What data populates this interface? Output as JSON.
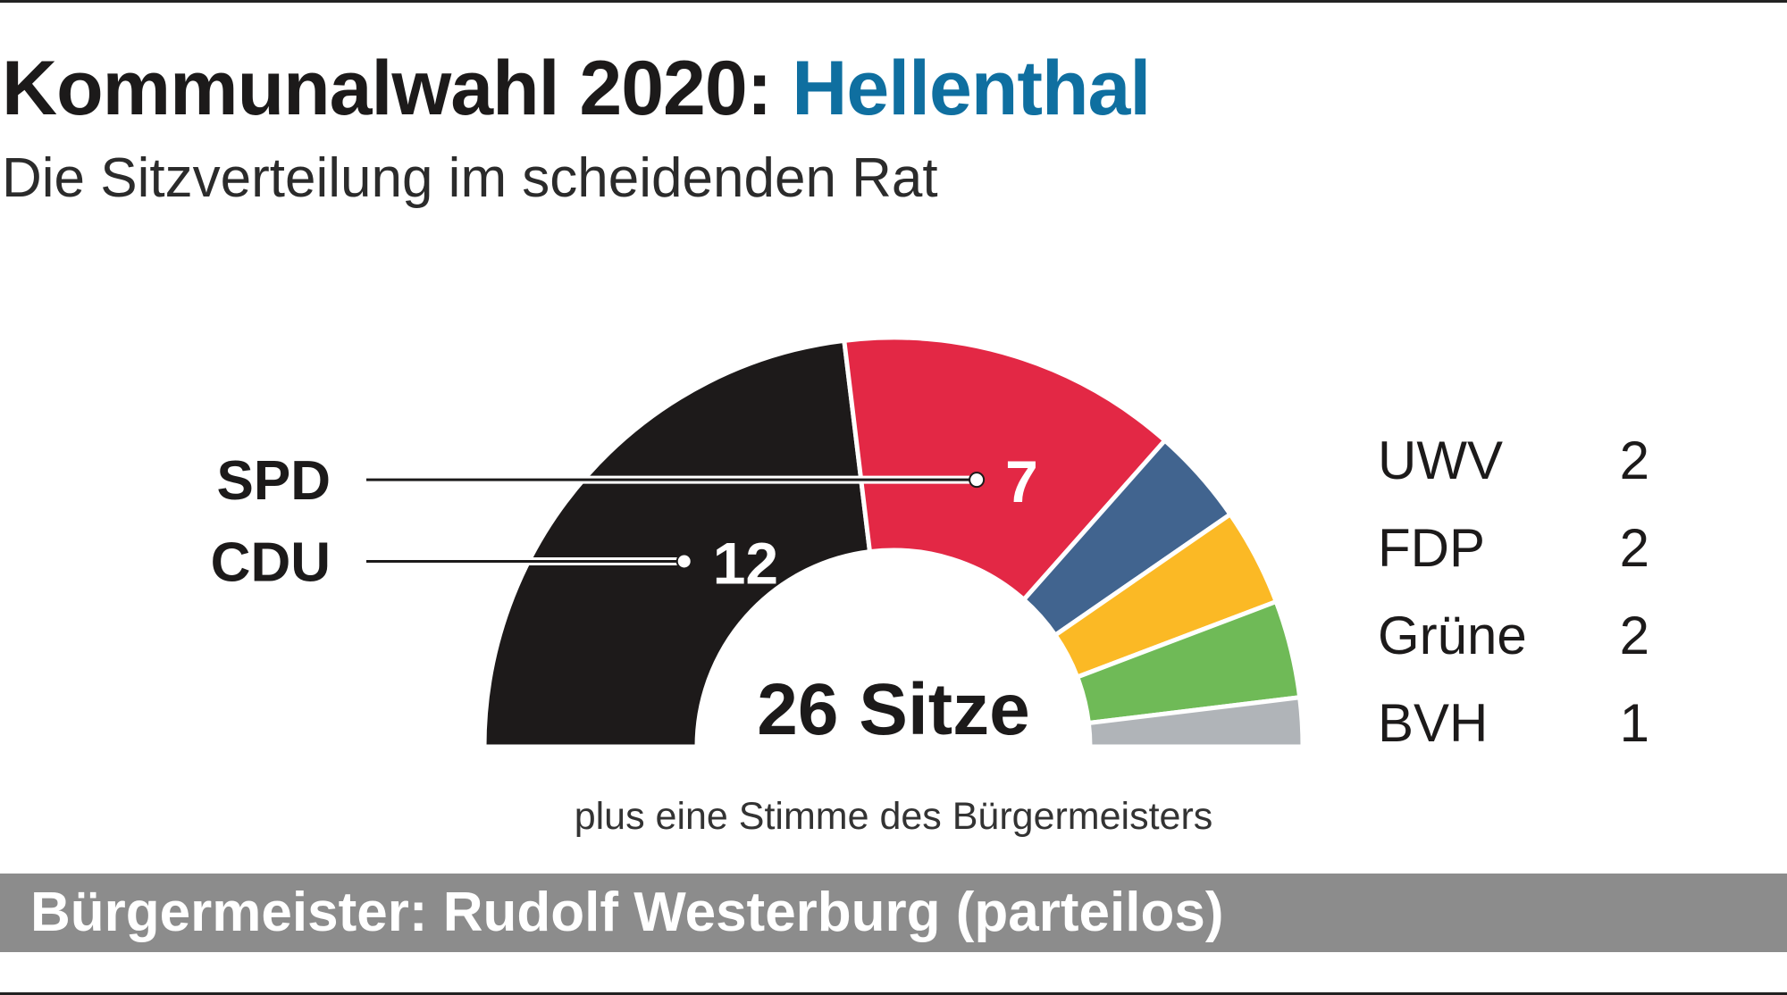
{
  "header": {
    "title_prefix": "Kommunalwahl 2020:",
    "title_place": "Hellenthal",
    "subtitle": "Die Sitzverteilung im scheidenden Rat"
  },
  "chart_data": {
    "type": "pie",
    "variant": "half-donut (parliament)",
    "total_label": "26 Sitze",
    "total": 26,
    "note": "plus eine Stimme des Bürgermeisters",
    "series": [
      {
        "name": "CDU",
        "value": 12,
        "color": "#1d1a1a",
        "label_side": "left"
      },
      {
        "name": "SPD",
        "value": 7,
        "color": "#e32845",
        "label_side": "left"
      },
      {
        "name": "UWV",
        "value": 2,
        "color": "#41648f",
        "label_side": "right"
      },
      {
        "name": "FDP",
        "value": 2,
        "color": "#fbb925",
        "label_side": "right"
      },
      {
        "name": "Grüne",
        "value": 2,
        "color": "#6fba57",
        "label_side": "right"
      },
      {
        "name": "BVH",
        "value": 1,
        "color": "#b0b4b8",
        "label_side": "right"
      }
    ]
  },
  "footer": {
    "text": "Bürgermeister: Rudolf Westerburg (parteilos)",
    "bar_color": "#8c8c8c"
  },
  "colors": {
    "title_accent": "#0f6fa0",
    "text": "#1c1a1a"
  }
}
